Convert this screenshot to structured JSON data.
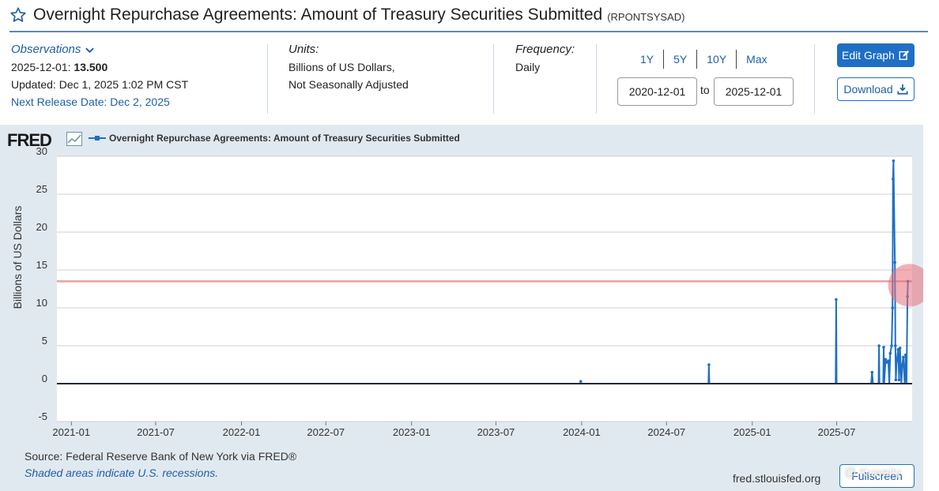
{
  "header": {
    "title": "Overnight Repurchase Agreements: Amount of Treasury Securities Submitted",
    "series_id": "(RPONTSYSAD)",
    "star_icon": "star-outline-icon"
  },
  "observations": {
    "toggle_label": "Observations",
    "latest_date": "2025-12-01:",
    "latest_value": "13.500",
    "updated": "Updated: Dec 1, 2025 1:02 PM CST",
    "next_release": "Next Release Date: Dec 2, 2025"
  },
  "units": {
    "label": "Units:",
    "line1": "Billions of US Dollars,",
    "line2": "Not Seasonally Adjusted"
  },
  "frequency": {
    "label": "Frequency:",
    "value": "Daily"
  },
  "range": {
    "links": [
      "1Y",
      "5Y",
      "10Y",
      "Max"
    ],
    "from": "2020-12-01",
    "to_label": "to",
    "to": "2025-12-01"
  },
  "buttons": {
    "edit_graph": "Edit Graph",
    "download": "Download",
    "fullscreen": "Fullscreen"
  },
  "logo": {
    "text": "FRED"
  },
  "footer": {
    "source": "Source: Federal Reserve Bank of New York via FRED®",
    "recession_note": "Shaded areas indicate U.S. recessions.",
    "url": "fred.stlouisfed.org",
    "watermark": "@ Kuwaity"
  },
  "colors": {
    "series": "#1f6fc5",
    "reference_line": "#e8a0a0",
    "highlight": "#e8707a",
    "panel_bg": "#e1e9f0",
    "accent": "#1f5fa6"
  },
  "chart_data": {
    "type": "line",
    "title": "Overnight Repurchase Agreements: Amount of Treasury Securities Submitted",
    "ylabel": "Billions of US Dollars",
    "xlabel": "",
    "legend": "top-left",
    "grid": true,
    "ylim": [
      -5,
      30
    ],
    "yticks": [
      30,
      25,
      20,
      15,
      10,
      5,
      0,
      -5
    ],
    "xlim": [
      "2020-12-01",
      "2025-12-10"
    ],
    "xticks": [
      "2021-01",
      "2021-07",
      "2022-01",
      "2022-07",
      "2023-01",
      "2023-07",
      "2024-01",
      "2024-07",
      "2025-01",
      "2025-07"
    ],
    "reference_line": 13.5,
    "series": [
      {
        "name": "Overnight Repurchase Agreements: Amount of Treasury Securities Submitted",
        "points": [
          [
            "2020-12-01",
            0
          ],
          [
            "2023-12-29",
            0
          ],
          [
            "2023-12-30",
            0.3
          ],
          [
            "2023-12-31",
            0
          ],
          [
            "2024-09-29",
            0
          ],
          [
            "2024-09-30",
            2.5
          ],
          [
            "2024-10-01",
            0
          ],
          [
            "2025-06-29",
            0
          ],
          [
            "2025-06-30",
            11.1
          ],
          [
            "2025-07-01",
            0
          ],
          [
            "2025-09-13",
            0
          ],
          [
            "2025-09-15",
            1.5
          ],
          [
            "2025-09-17",
            0
          ],
          [
            "2025-09-29",
            0
          ],
          [
            "2025-09-30",
            5.0
          ],
          [
            "2025-10-01",
            0
          ],
          [
            "2025-10-09",
            0
          ],
          [
            "2025-10-10",
            4.8
          ],
          [
            "2025-10-11",
            0
          ],
          [
            "2025-10-14",
            3.2
          ],
          [
            "2025-10-16",
            2.8
          ],
          [
            "2025-10-20",
            3.0
          ],
          [
            "2025-10-22",
            0
          ],
          [
            "2025-10-24",
            4.0
          ],
          [
            "2025-10-27",
            5.0
          ],
          [
            "2025-10-29",
            10.0
          ],
          [
            "2025-10-30",
            27.0
          ],
          [
            "2025-10-31",
            29.4
          ],
          [
            "2025-11-03",
            16.0
          ],
          [
            "2025-11-04",
            5.0
          ],
          [
            "2025-11-05",
            0.5
          ],
          [
            "2025-11-07",
            3.0
          ],
          [
            "2025-11-10",
            4.5
          ],
          [
            "2025-11-12",
            0.5
          ],
          [
            "2025-11-14",
            4.7
          ],
          [
            "2025-11-17",
            0
          ],
          [
            "2025-11-19",
            2.5
          ],
          [
            "2025-11-21",
            3.5
          ],
          [
            "2025-11-24",
            0
          ],
          [
            "2025-11-26",
            3.8
          ],
          [
            "2025-11-28",
            0
          ],
          [
            "2025-11-30",
            11.5
          ],
          [
            "2025-12-01",
            13.5
          ]
        ]
      }
    ]
  }
}
